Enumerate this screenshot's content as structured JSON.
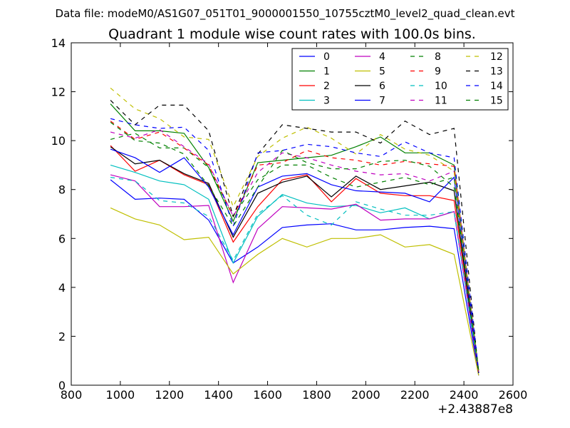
{
  "page_title": "Data file: modeM0/AS1G07_051T01_9000001550_10755cztM0_level2_quad_clean.evt",
  "chart_data": {
    "type": "line",
    "title": "Quadrant 1 module wise count rates with 100.0s bins.",
    "xlabel": "",
    "ylabel": "",
    "x_offset_label": "+2.43887e8",
    "xlim": [
      800,
      2600
    ],
    "ylim": [
      0,
      14
    ],
    "x_ticks": [
      "800",
      "1000",
      "1200",
      "1400",
      "1600",
      "1800",
      "2000",
      "2200",
      "2400",
      "2600"
    ],
    "y_ticks": [
      "0",
      "2",
      "4",
      "6",
      "8",
      "10",
      "12",
      "14"
    ],
    "grid": false,
    "legend_placement": "top-right",
    "x": [
      960,
      1060,
      1160,
      1260,
      1360,
      1460,
      1560,
      1660,
      1760,
      1860,
      1960,
      2060,
      2160,
      2260,
      2360,
      2460
    ],
    "series": [
      {
        "name": "0",
        "color": "#0000ff",
        "dash": false,
        "values": [
          8.4,
          7.6,
          7.65,
          7.6,
          6.75,
          5.0,
          5.65,
          6.45,
          6.55,
          6.6,
          6.35,
          6.35,
          6.45,
          6.5,
          6.4,
          0.4
        ]
      },
      {
        "name": "1",
        "color": "#008000",
        "dash": false,
        "values": [
          11.5,
          10.4,
          10.4,
          10.3,
          8.9,
          6.7,
          9.1,
          9.2,
          9.3,
          9.4,
          9.75,
          10.15,
          9.5,
          9.5,
          9.0,
          0.5
        ]
      },
      {
        "name": "2",
        "color": "#ff0000",
        "dash": false,
        "values": [
          9.8,
          8.75,
          9.2,
          8.6,
          8.2,
          5.85,
          7.3,
          8.4,
          8.6,
          7.5,
          8.45,
          7.85,
          7.75,
          7.75,
          7.55,
          0.6
        ]
      },
      {
        "name": "3",
        "color": "#00bfbf",
        "dash": false,
        "values": [
          9.0,
          8.7,
          8.35,
          8.2,
          7.6,
          5.0,
          6.9,
          7.8,
          7.45,
          7.3,
          7.35,
          7.05,
          7.25,
          6.8,
          7.1,
          0.5
        ]
      },
      {
        "name": "4",
        "color": "#bf00bf",
        "dash": false,
        "values": [
          8.6,
          8.35,
          7.3,
          7.3,
          7.35,
          4.2,
          6.4,
          7.3,
          7.25,
          7.2,
          7.4,
          6.75,
          6.8,
          6.8,
          7.1,
          0.5
        ]
      },
      {
        "name": "5",
        "color": "#bfbf00",
        "dash": false,
        "values": [
          7.25,
          6.8,
          6.55,
          5.95,
          6.05,
          4.55,
          5.35,
          6.0,
          5.65,
          6.0,
          6.0,
          6.15,
          5.65,
          5.75,
          5.35,
          0.4
        ]
      },
      {
        "name": "6",
        "color": "#000000",
        "dash": false,
        "values": [
          9.75,
          9.05,
          9.2,
          8.65,
          8.25,
          6.05,
          7.85,
          8.3,
          8.55,
          7.7,
          8.55,
          8.0,
          8.15,
          8.3,
          7.95,
          0.5
        ]
      },
      {
        "name": "7",
        "color": "#0000ff",
        "dash": false,
        "values": [
          9.65,
          9.3,
          8.7,
          9.3,
          8.1,
          6.15,
          8.1,
          8.55,
          8.65,
          8.2,
          7.95,
          7.9,
          7.85,
          7.5,
          8.5,
          0.5
        ]
      },
      {
        "name": "8",
        "color": "#008000",
        "dash": true,
        "values": [
          10.05,
          10.3,
          9.7,
          9.7,
          8.9,
          6.9,
          8.4,
          9.0,
          9.0,
          8.5,
          8.1,
          8.3,
          8.5,
          8.2,
          8.5,
          0.6
        ]
      },
      {
        "name": "9",
        "color": "#ff0000",
        "dash": true,
        "values": [
          10.8,
          10.05,
          10.35,
          9.7,
          9.0,
          6.9,
          9.0,
          9.1,
          9.6,
          9.3,
          9.2,
          9.0,
          9.15,
          9.05,
          8.95,
          0.5
        ]
      },
      {
        "name": "10",
        "color": "#00bfbf",
        "dash": true,
        "values": [
          8.5,
          8.35,
          7.55,
          7.45,
          6.9,
          5.1,
          7.0,
          7.75,
          6.95,
          6.55,
          7.5,
          7.2,
          6.95,
          6.95,
          7.1,
          0.6
        ]
      },
      {
        "name": "11",
        "color": "#bf00bf",
        "dash": true,
        "values": [
          10.35,
          10.1,
          10.45,
          9.75,
          9.05,
          6.9,
          8.7,
          9.5,
          9.3,
          9.0,
          8.75,
          8.6,
          8.65,
          8.35,
          8.75,
          0.6
        ]
      },
      {
        "name": "12",
        "color": "#bfbf00",
        "dash": true,
        "values": [
          12.15,
          11.3,
          10.9,
          10.15,
          10.05,
          7.3,
          9.35,
          10.1,
          10.55,
          10.1,
          9.45,
          10.25,
          9.65,
          9.4,
          8.75,
          0.6
        ]
      },
      {
        "name": "13",
        "color": "#000000",
        "dash": true,
        "values": [
          11.65,
          10.65,
          11.45,
          11.45,
          10.4,
          6.9,
          9.45,
          10.65,
          10.5,
          10.35,
          10.35,
          9.9,
          10.8,
          10.25,
          10.5,
          0.5
        ]
      },
      {
        "name": "14",
        "color": "#0000ff",
        "dash": true,
        "values": [
          10.9,
          10.65,
          10.5,
          10.55,
          9.6,
          6.5,
          9.5,
          9.6,
          9.85,
          9.75,
          9.5,
          9.35,
          9.95,
          9.5,
          9.3,
          0.6
        ]
      },
      {
        "name": "15",
        "color": "#008000",
        "dash": true,
        "values": [
          10.75,
          10.0,
          9.9,
          9.45,
          8.15,
          6.5,
          8.1,
          9.6,
          9.1,
          8.85,
          8.85,
          9.15,
          9.2,
          8.95,
          8.1,
          0.6
        ]
      }
    ]
  }
}
